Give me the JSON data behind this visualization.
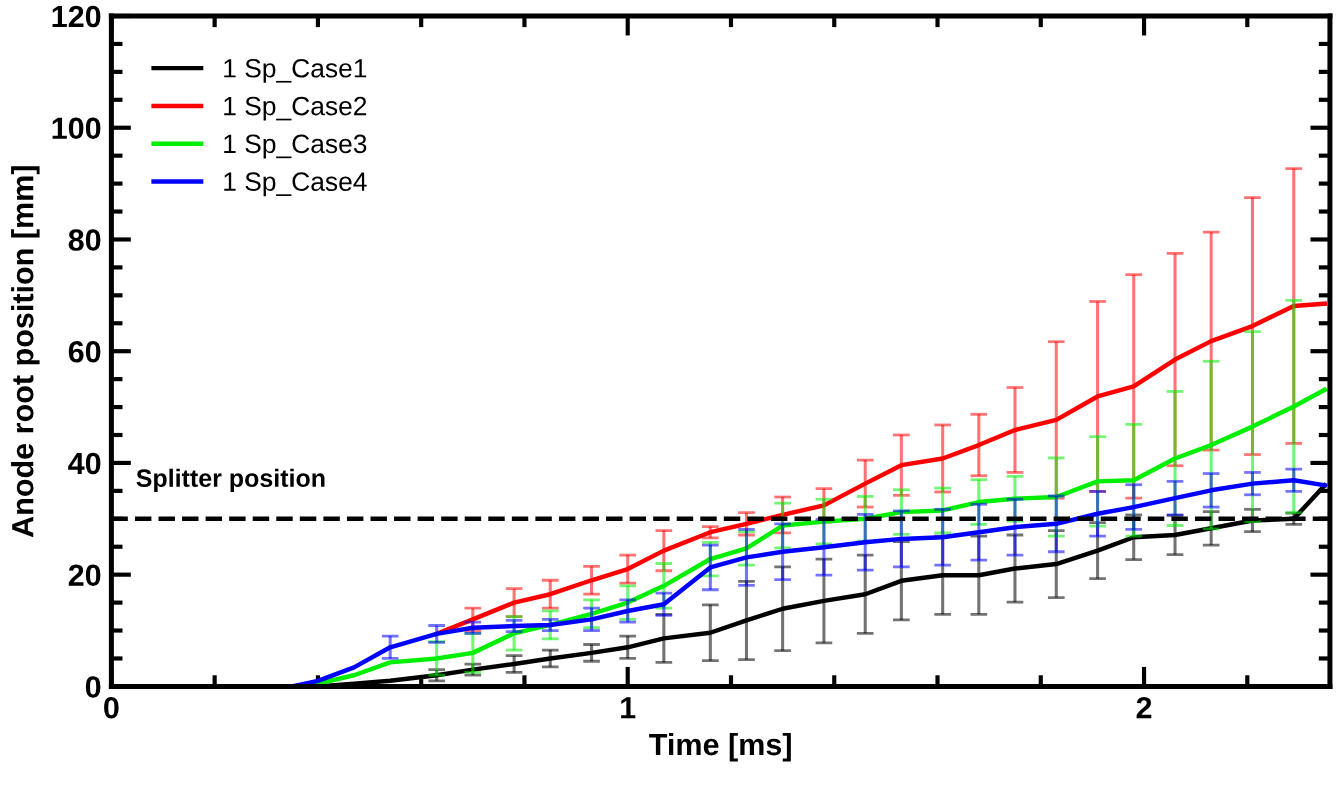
{
  "chart_data": {
    "type": "line",
    "xlabel": "Time [ms]",
    "ylabel": "Anode root position [mm]",
    "x": [
      0.35,
      0.4,
      0.47,
      0.54,
      0.63,
      0.7,
      0.78,
      0.85,
      0.93,
      1.0,
      1.07,
      1.16,
      1.23,
      1.3,
      1.38,
      1.46,
      1.53,
      1.61,
      1.68,
      1.75,
      1.83,
      1.91,
      1.98,
      2.06,
      2.13,
      2.21,
      2.29,
      2.35
    ],
    "series": [
      {
        "name": "1 Sp_Case1",
        "color": "#000000",
        "values": [
          0,
          0,
          0.5,
          1,
          2,
          3,
          4,
          5,
          6,
          7,
          8.6,
          9.6,
          11.8,
          13.9,
          15.3,
          16.5,
          18.9,
          19.9,
          19.9,
          21.1,
          21.9,
          24.3,
          26.7,
          27.1,
          28.3,
          29.7,
          30,
          36
        ],
        "errors": [
          null,
          null,
          null,
          null,
          1,
          1,
          1.5,
          1.5,
          1.5,
          2,
          4.3,
          5,
          7,
          7.5,
          7.5,
          7,
          7,
          7,
          7,
          6,
          6,
          5,
          4,
          3.5,
          3,
          2,
          1,
          null
        ]
      },
      {
        "name": "1 Sp_Case2",
        "color": "#ff0000",
        "values": [
          null,
          null,
          null,
          null,
          9.4,
          12,
          15,
          16.5,
          19,
          21,
          24.3,
          27.6,
          29.1,
          30.7,
          32.4,
          36.3,
          39.6,
          40.8,
          43.2,
          45.9,
          47.7,
          51.9,
          53.7,
          58.5,
          61.8,
          64.5,
          68.1,
          68.5
        ],
        "errors": [
          null,
          null,
          null,
          null,
          null,
          2,
          2.5,
          2.5,
          2.5,
          2.5,
          3.6,
          1,
          2,
          3.2,
          3,
          4.2,
          5.4,
          6,
          5.5,
          7.6,
          14,
          17,
          20,
          19,
          19.5,
          23,
          24.6,
          null
        ]
      },
      {
        "name": "1 Sp_Case3",
        "color": "#00ee00",
        "values": [
          0,
          0.5,
          2,
          4.3,
          5,
          6,
          9.5,
          11,
          13,
          15,
          18,
          22.8,
          24.7,
          28.8,
          29.5,
          30,
          31.2,
          31.5,
          33,
          33.6,
          33.9,
          36.7,
          36.9,
          40.8,
          43.2,
          46.5,
          50.1,
          53.1
        ],
        "errors": [
          null,
          null,
          null,
          null,
          3,
          3.5,
          3,
          2.5,
          2.5,
          3,
          4,
          3,
          3,
          4,
          4,
          4,
          4,
          4,
          4,
          4,
          7,
          8,
          10,
          12,
          15,
          17,
          19,
          null
        ]
      },
      {
        "name": "1 Sp_Case4",
        "color": "#0000ff",
        "values": [
          0,
          1,
          3.4,
          7,
          9.4,
          10.5,
          10.8,
          11,
          12,
          13.5,
          14.7,
          21.3,
          23.1,
          24.1,
          24.9,
          25.8,
          26.4,
          26.7,
          27.6,
          28.5,
          29.1,
          30.9,
          32.1,
          33.7,
          35.1,
          36.3,
          36.9,
          36
        ],
        "errors": [
          null,
          null,
          null,
          2,
          1.5,
          1,
          1,
          1,
          2,
          2,
          2,
          4,
          5,
          5,
          5,
          5,
          5,
          5,
          5,
          5,
          5,
          4,
          4,
          3,
          3,
          2,
          2,
          null
        ]
      }
    ],
    "ref_lines": [
      {
        "axis": "y",
        "value": 30,
        "label": "Splitter position",
        "color": "#000000",
        "line_style": "dashed"
      }
    ],
    "xlim": [
      0,
      2.36
    ],
    "xticks": [
      0,
      1,
      2
    ],
    "ylim": [
      0,
      120
    ],
    "yticks": [
      0,
      20,
      40,
      60,
      80,
      100,
      120
    ],
    "grid": false,
    "legend": "top left",
    "marker": "none",
    "line_style": "solid"
  }
}
